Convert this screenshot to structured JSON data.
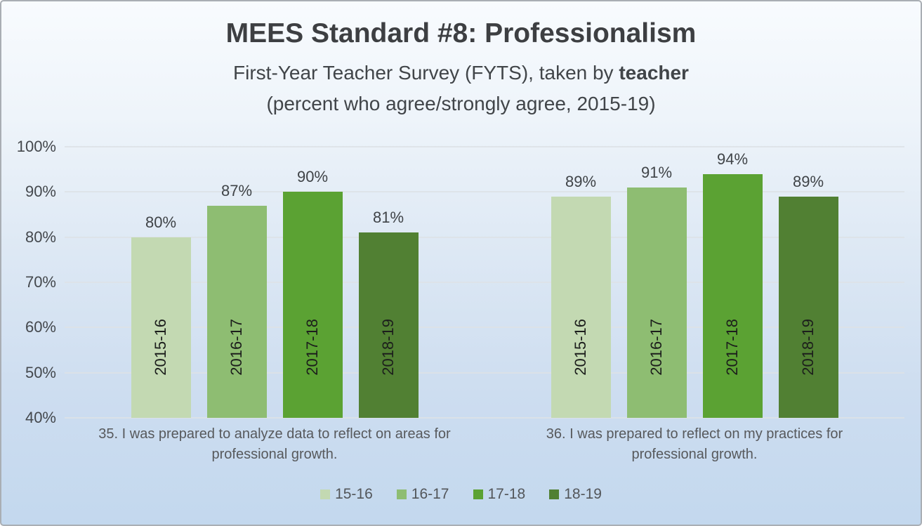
{
  "header": {
    "title": "MEES Standard #8: Professionalism",
    "subtitle_prefix": "First-Year Teacher Survey (FYTS), taken by ",
    "subtitle_bold": "teacher",
    "subtitle_line2": "(percent who agree/strongly agree, 2015-19)"
  },
  "chart_data": {
    "type": "bar",
    "title": "MEES Standard #8: Professionalism",
    "subtitle": "First-Year Teacher Survey (FYTS), taken by teacher (percent who agree/strongly agree, 2015-19)",
    "categories": [
      "35. I was prepared to analyze data to reflect on areas for professional growth.",
      "36. I was prepared to reflect on my practices for professional growth."
    ],
    "series": [
      {
        "name": "15-16",
        "bar_label": "2015-16",
        "color": "#c3d9b2",
        "values": [
          80,
          89
        ]
      },
      {
        "name": "16-17",
        "bar_label": "2016-17",
        "color": "#8ebd72",
        "values": [
          87,
          91
        ]
      },
      {
        "name": "17-18",
        "bar_label": "2017-18",
        "color": "#5ba233",
        "values": [
          90,
          94
        ]
      },
      {
        "name": "18-19",
        "bar_label": "2018-19",
        "color": "#518033",
        "values": [
          81,
          89
        ]
      }
    ],
    "ylim": [
      40,
      100
    ],
    "ytick_step": 10,
    "ytick_labels": [
      "100%",
      "90%",
      "80%",
      "70%",
      "60%",
      "50%",
      "40%"
    ],
    "value_suffix": "%",
    "grid": true,
    "legend_position": "bottom",
    "legend_labels": [
      "15-16",
      "16-17",
      "17-18",
      "18-19"
    ]
  },
  "colors": {
    "background_top": "#f8fbfe",
    "background_bottom": "#c3d8ee",
    "gridline": "#dde2e6",
    "border": "#a9aeb4",
    "title_text": "#3d3f42",
    "axis_text": "#44484d",
    "category_text": "#57595c",
    "bar_year_text": "#1c1e1c"
  }
}
